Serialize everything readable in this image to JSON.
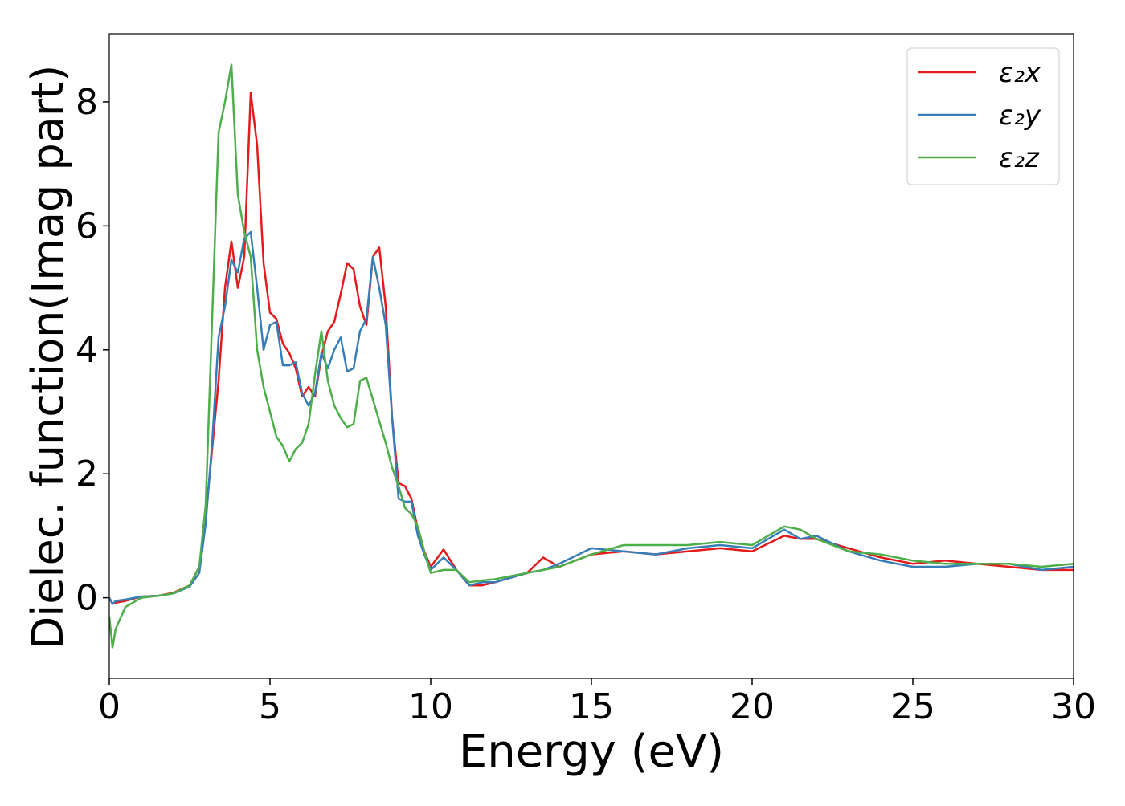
{
  "chart_data": {
    "type": "line",
    "xlabel": "Energy (eV)",
    "ylabel": "Dielec. function(Imag part)",
    "xlim": [
      0,
      30
    ],
    "ylim": [
      -1.3,
      9.1
    ],
    "xticks": [
      0,
      5,
      10,
      15,
      20,
      25,
      30
    ],
    "yticks": [
      0,
      2,
      4,
      6,
      8
    ],
    "legend": "upper right",
    "grid": false,
    "x": [
      0,
      0.1,
      0.2,
      0.5,
      1,
      1.5,
      2,
      2.5,
      2.8,
      3,
      3.2,
      3.4,
      3.6,
      3.8,
      4,
      4.2,
      4.4,
      4.6,
      4.8,
      5,
      5.2,
      5.4,
      5.6,
      5.8,
      6,
      6.2,
      6.4,
      6.6,
      6.8,
      7,
      7.2,
      7.4,
      7.6,
      7.8,
      8,
      8.2,
      8.4,
      8.6,
      8.8,
      9,
      9.2,
      9.4,
      9.6,
      9.8,
      10,
      10.4,
      10.8,
      11.2,
      11.6,
      12,
      13,
      13.5,
      14,
      15,
      16,
      17,
      18,
      19,
      20,
      21,
      21.5,
      22,
      23,
      24,
      25,
      26,
      27,
      28,
      29,
      30
    ],
    "series": [
      {
        "name": "ε₂x",
        "color": "#e41a1c",
        "values": [
          0,
          -0.1,
          -0.08,
          -0.05,
          0.02,
          0.03,
          0.08,
          0.2,
          0.5,
          1.3,
          2.4,
          3.5,
          5.0,
          5.75,
          5.0,
          5.5,
          8.15,
          7.3,
          5.4,
          4.6,
          4.5,
          4.1,
          3.95,
          3.7,
          3.25,
          3.4,
          3.25,
          3.9,
          4.3,
          4.45,
          4.9,
          5.4,
          5.3,
          4.7,
          4.4,
          5.5,
          5.65,
          4.7,
          2.9,
          1.85,
          1.8,
          1.6,
          1.1,
          0.75,
          0.5,
          0.78,
          0.45,
          0.2,
          0.2,
          0.25,
          0.4,
          0.65,
          0.5,
          0.7,
          0.75,
          0.7,
          0.75,
          0.8,
          0.75,
          1.0,
          0.95,
          0.95,
          0.8,
          0.65,
          0.55,
          0.6,
          0.55,
          0.5,
          0.45,
          0.45
        ]
      },
      {
        "name": "ε₂y",
        "color": "#377eb8",
        "values": [
          0,
          -0.1,
          -0.05,
          -0.03,
          0.02,
          0.03,
          0.07,
          0.18,
          0.4,
          1.2,
          2.5,
          4.2,
          4.7,
          5.45,
          5.25,
          5.8,
          5.9,
          5.0,
          4.0,
          4.4,
          4.45,
          3.75,
          3.75,
          3.8,
          3.3,
          3.1,
          3.3,
          3.95,
          3.7,
          4.0,
          4.2,
          3.65,
          3.7,
          4.3,
          4.5,
          5.5,
          5.0,
          4.4,
          2.9,
          1.6,
          1.55,
          1.55,
          1.0,
          0.7,
          0.45,
          0.65,
          0.45,
          0.2,
          0.25,
          0.25,
          0.4,
          0.45,
          0.55,
          0.8,
          0.75,
          0.7,
          0.8,
          0.85,
          0.8,
          1.1,
          0.95,
          1.0,
          0.75,
          0.6,
          0.5,
          0.5,
          0.55,
          0.55,
          0.45,
          0.5
        ]
      },
      {
        "name": "ε₂z",
        "color": "#4daf4a",
        "values": [
          -0.3,
          -0.8,
          -0.5,
          -0.15,
          0.0,
          0.03,
          0.07,
          0.2,
          0.5,
          1.5,
          4.5,
          7.5,
          8.0,
          8.6,
          6.5,
          5.9,
          5.5,
          4.0,
          3.4,
          3.0,
          2.6,
          2.45,
          2.2,
          2.4,
          2.5,
          2.8,
          3.6,
          4.3,
          3.5,
          3.1,
          2.9,
          2.75,
          2.8,
          3.5,
          3.55,
          3.2,
          2.85,
          2.5,
          2.1,
          1.8,
          1.45,
          1.35,
          1.15,
          0.75,
          0.4,
          0.45,
          0.45,
          0.25,
          0.28,
          0.3,
          0.4,
          0.45,
          0.5,
          0.7,
          0.85,
          0.85,
          0.85,
          0.9,
          0.85,
          1.15,
          1.1,
          0.95,
          0.75,
          0.7,
          0.6,
          0.55,
          0.55,
          0.55,
          0.5,
          0.55
        ]
      }
    ]
  }
}
